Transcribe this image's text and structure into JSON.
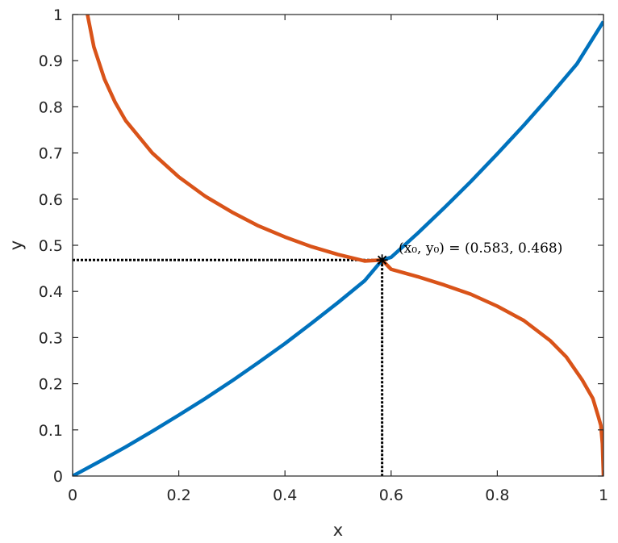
{
  "chart_data": {
    "type": "line",
    "xlabel": "x",
    "ylabel": "y",
    "xlim": [
      0,
      1
    ],
    "ylim": [
      0,
      1
    ],
    "x_ticks": [
      0,
      0.2,
      0.4,
      0.6,
      0.8,
      1
    ],
    "x_tick_labels": [
      "0",
      "0.2",
      "0.4",
      "0.6",
      "0.8",
      "1"
    ],
    "y_ticks": [
      0,
      0.1,
      0.2,
      0.3,
      0.4,
      0.5,
      0.6,
      0.7,
      0.8,
      0.9,
      1
    ],
    "y_tick_labels": [
      "0",
      "0.1",
      "0.2",
      "0.3",
      "0.4",
      "0.5",
      "0.6",
      "0.7",
      "0.8",
      "0.9",
      "1"
    ],
    "grid": false,
    "box": true,
    "series": [
      {
        "color": "#0072BD",
        "x": [
          0,
          0.05,
          0.1,
          0.15,
          0.2,
          0.25,
          0.3,
          0.35,
          0.4,
          0.45,
          0.5,
          0.55,
          0.583,
          0.6,
          0.65,
          0.7,
          0.75,
          0.8,
          0.85,
          0.9,
          0.95,
          1
        ],
        "y": [
          0,
          0.031,
          0.063,
          0.097,
          0.132,
          0.168,
          0.206,
          0.246,
          0.287,
          0.331,
          0.376,
          0.423,
          0.468,
          0.474,
          0.526,
          0.581,
          0.638,
          0.698,
          0.76,
          0.825,
          0.893,
          0.985
        ]
      },
      {
        "color": "#D95319",
        "x": [
          0.028,
          0.04,
          0.06,
          0.08,
          0.1,
          0.15,
          0.2,
          0.25,
          0.3,
          0.35,
          0.4,
          0.45,
          0.5,
          0.55,
          0.583,
          0.6,
          0.65,
          0.7,
          0.75,
          0.8,
          0.85,
          0.9,
          0.93,
          0.96,
          0.98,
          0.99,
          0.995,
          0.998,
          1
        ],
        "y": [
          1.0,
          0.93,
          0.86,
          0.81,
          0.77,
          0.7,
          0.648,
          0.606,
          0.572,
          0.542,
          0.518,
          0.497,
          0.48,
          0.466,
          0.468,
          0.448,
          0.432,
          0.414,
          0.394,
          0.368,
          0.337,
          0.293,
          0.258,
          0.208,
          0.168,
          0.13,
          0.11,
          0.07,
          0
        ]
      }
    ],
    "marker": {
      "x": 0.583,
      "y": 0.468,
      "symbol": "*"
    },
    "guide_lines": {
      "style": "dotted",
      "color": "#000000"
    },
    "annotation": {
      "text": "(x₀, y₀) = (0.583, 0.468)",
      "x": 0.583,
      "y": 0.468
    }
  }
}
